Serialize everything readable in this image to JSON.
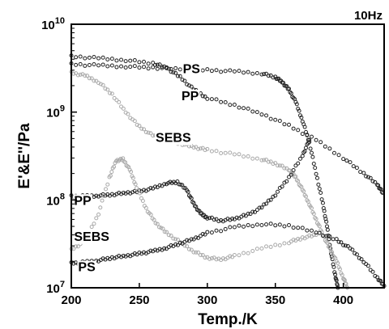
{
  "chart_data": {
    "type": "scatter",
    "title": "",
    "annotation": "10Hz",
    "xlabel": "Temp./K",
    "ylabel": "E'&E''/Pa",
    "xlim": [
      200,
      430
    ],
    "ylim": [
      10000000,
      10000000000
    ],
    "yscale": "log",
    "xticks": [
      200,
      250,
      300,
      350,
      400
    ],
    "yticks": [
      {
        "value": 10000000,
        "mantissa": "10",
        "exp": "7"
      },
      {
        "value": 100000000,
        "mantissa": "10",
        "exp": "8"
      },
      {
        "value": 1000000000,
        "mantissa": "10",
        "exp": "9"
      },
      {
        "value": 10000000000,
        "mantissa": "10",
        "exp": "10"
      }
    ],
    "grid": false,
    "legend": "none",
    "series": [
      {
        "label": "PS",
        "color": "#222222",
        "points": [
          [
            200,
            3500000000.0
          ],
          [
            220,
            3400000000.0
          ],
          [
            240,
            3300000000.0
          ],
          [
            260,
            3200000000.0
          ],
          [
            280,
            3100000000.0
          ],
          [
            300,
            3000000000.0
          ],
          [
            320,
            2900000000.0
          ],
          [
            340,
            2750000000.0
          ],
          [
            350,
            2500000000.0
          ],
          [
            355,
            2200000000.0
          ],
          [
            360,
            1800000000.0
          ],
          [
            365,
            1300000000.0
          ],
          [
            370,
            800000000.0
          ],
          [
            375,
            450000000.0
          ],
          [
            380,
            200000000.0
          ],
          [
            385,
            90000000.0
          ],
          [
            388,
            50000000.0
          ],
          [
            391,
            25000000.0
          ],
          [
            394,
            14000000.0
          ],
          [
            396,
            10000000.0
          ]
        ]
      },
      {
        "label": "PP",
        "color": "#222222",
        "points": [
          [
            200,
            4300000000.0
          ],
          [
            220,
            4100000000.0
          ],
          [
            240,
            3900000000.0
          ],
          [
            260,
            3600000000.0
          ],
          [
            270,
            3200000000.0
          ],
          [
            280,
            2500000000.0
          ],
          [
            290,
            1800000000.0
          ],
          [
            300,
            1450000000.0
          ],
          [
            320,
            1200000000.0
          ],
          [
            340,
            950000000.0
          ],
          [
            360,
            700000000.0
          ],
          [
            380,
            480000000.0
          ],
          [
            400,
            300000000.0
          ],
          [
            415,
            200000000.0
          ],
          [
            425,
            150000000.0
          ],
          [
            429,
            120000000.0
          ]
        ]
      },
      {
        "label": "SEBS",
        "color": "#aaaaaa",
        "points": [
          [
            200,
            2800000000.0
          ],
          [
            210,
            2600000000.0
          ],
          [
            220,
            2200000000.0
          ],
          [
            230,
            1600000000.0
          ],
          [
            240,
            1000000000.0
          ],
          [
            250,
            680000000.0
          ],
          [
            260,
            540000000.0
          ],
          [
            270,
            480000000.0
          ],
          [
            280,
            440000000.0
          ],
          [
            290,
            400000000.0
          ],
          [
            300,
            370000000.0
          ],
          [
            320,
            330000000.0
          ],
          [
            340,
            290000000.0
          ],
          [
            350,
            260000000.0
          ],
          [
            360,
            220000000.0
          ],
          [
            365,
            180000000.0
          ],
          [
            370,
            130000000.0
          ],
          [
            375,
            90000000.0
          ],
          [
            380,
            60000000.0
          ],
          [
            385,
            40000000.0
          ],
          [
            390,
            28000000.0
          ],
          [
            395,
            20000000.0
          ],
          [
            400,
            13000000.0
          ],
          [
            403,
            10000000.0
          ]
        ]
      },
      {
        "label": "PP",
        "color": "#222222",
        "points": [
          [
            200,
            110000000.0
          ],
          [
            210,
            110000000.0
          ],
          [
            220,
            112000000.0
          ],
          [
            230,
            115000000.0
          ],
          [
            240,
            120000000.0
          ],
          [
            250,
            125000000.0
          ],
          [
            260,
            135000000.0
          ],
          [
            270,
            155000000.0
          ],
          [
            278,
            160000000.0
          ],
          [
            285,
            130000000.0
          ],
          [
            290,
            90000000.0
          ],
          [
            295,
            70000000.0
          ],
          [
            300,
            63000000.0
          ],
          [
            310,
            58000000.0
          ],
          [
            320,
            61000000.0
          ],
          [
            330,
            68000000.0
          ],
          [
            340,
            82000000.0
          ],
          [
            350,
            115000000.0
          ],
          [
            360,
            180000000.0
          ],
          [
            370,
            320000000.0
          ],
          [
            375,
            480000000.0
          ]
        ]
      },
      {
        "label": "SEBS",
        "color": "#aaaaaa",
        "points": [
          [
            200,
            27000000.0
          ],
          [
            210,
            34000000.0
          ],
          [
            220,
            70000000.0
          ],
          [
            228,
            180000000.0
          ],
          [
            233,
            280000000.0
          ],
          [
            238,
            290000000.0
          ],
          [
            243,
            220000000.0
          ],
          [
            248,
            140000000.0
          ],
          [
            255,
            80000000.0
          ],
          [
            262,
            55000000.0
          ],
          [
            270,
            42000000.0
          ],
          [
            280,
            33000000.0
          ],
          [
            290,
            26000000.0
          ],
          [
            300,
            22000000.0
          ],
          [
            310,
            21000000.0
          ],
          [
            320,
            23000000.0
          ],
          [
            340,
            28000000.0
          ],
          [
            360,
            33000000.0
          ],
          [
            370,
            37000000.0
          ],
          [
            380,
            40000000.0
          ]
        ]
      },
      {
        "label": "PS",
        "color": "#222222",
        "points": [
          [
            200,
            19000000.0
          ],
          [
            210,
            19500000.0
          ],
          [
            220,
            20500000.0
          ],
          [
            230,
            22000000.0
          ],
          [
            240,
            23000000.0
          ],
          [
            250,
            24500000.0
          ],
          [
            260,
            26000000.0
          ],
          [
            270,
            28500000.0
          ],
          [
            280,
            32000000.0
          ],
          [
            290,
            36000000.0
          ],
          [
            300,
            42000000.0
          ],
          [
            320,
            49000000.0
          ],
          [
            340,
            53000000.0
          ],
          [
            360,
            51000000.0
          ],
          [
            380,
            43000000.0
          ],
          [
            395,
            35000000.0
          ],
          [
            405,
            28000000.0
          ],
          [
            415,
            20000000.0
          ],
          [
            425,
            13000000.0
          ],
          [
            430,
            10500000.0
          ]
        ]
      }
    ],
    "curve_labels": [
      {
        "text": "PS",
        "x": 282,
        "y": 3150000000.0
      },
      {
        "text": "PP",
        "x": 281,
        "y": 1550000000.0
      },
      {
        "text": "SEBS",
        "x": 262,
        "y": 520000000.0
      },
      {
        "text": "PP",
        "x": 202,
        "y": 100000000.0
      },
      {
        "text": "SEBS",
        "x": 202,
        "y": 39000000.0
      },
      {
        "text": "PS",
        "x": 205,
        "y": 17500000.0
      }
    ]
  }
}
